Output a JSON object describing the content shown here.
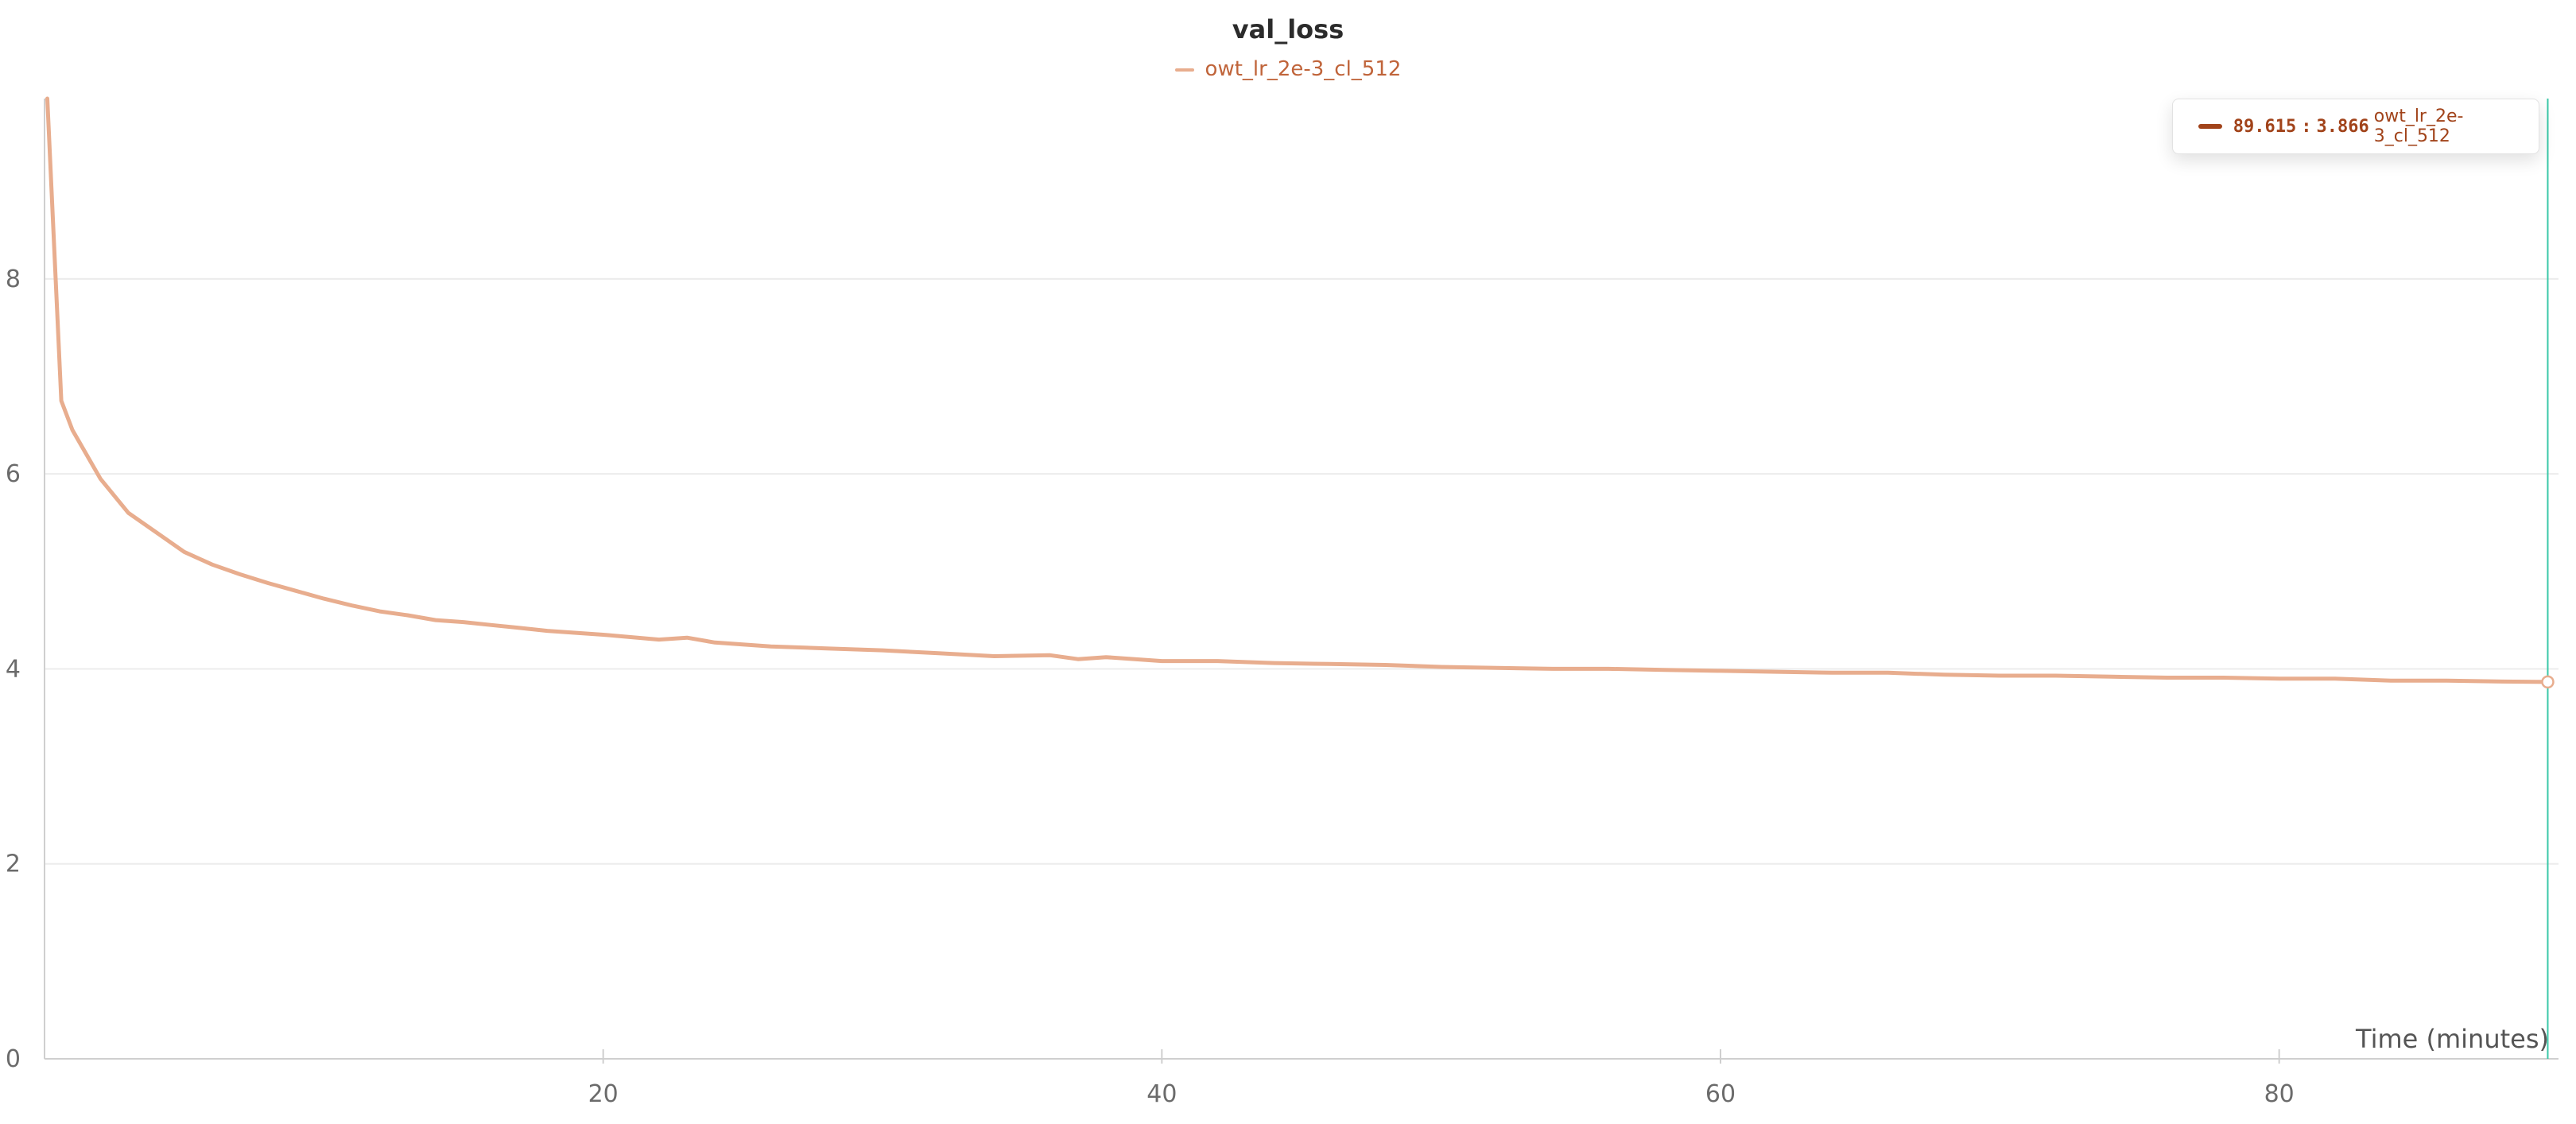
{
  "colors": {
    "series": "#e8ad8e",
    "legend_text": "#c0643a",
    "tooltip_text": "#a1431a",
    "crosshair": "#3ac8a8",
    "grid": "#ececec",
    "axis": "#cfcfcf"
  },
  "tooltip": {
    "x_value": "89.615",
    "y_value": "3.866",
    "series": "owt_lr_2e-3_cl_512"
  },
  "chart_data": {
    "type": "line",
    "title": "val_loss",
    "xlabel": "Time (minutes)",
    "ylabel": "",
    "xlim": [
      0,
      90
    ],
    "ylim": [
      0,
      9.85
    ],
    "x_ticks": [
      20,
      40,
      60,
      80
    ],
    "y_ticks": [
      0,
      2,
      4,
      6,
      8
    ],
    "grid": true,
    "legend_position": "top-center",
    "crosshair_x": 89.615,
    "series": [
      {
        "name": "owt_lr_2e-3_cl_512",
        "x": [
          0.1,
          0.6,
          1,
          1.5,
          2,
          3,
          4,
          5,
          6,
          7,
          8,
          9,
          10,
          11,
          12,
          13,
          14,
          15,
          16,
          17,
          18,
          20,
          22,
          23,
          24,
          26,
          28,
          30,
          32,
          34,
          36,
          37,
          38,
          40,
          42,
          44,
          46,
          48,
          50,
          52,
          54,
          56,
          58,
          60,
          62,
          64,
          66,
          68,
          70,
          72,
          74,
          76,
          78,
          80,
          82,
          84,
          86,
          88,
          89.615
        ],
        "y": [
          9.85,
          6.75,
          6.45,
          6.2,
          5.95,
          5.6,
          5.4,
          5.2,
          5.07,
          4.97,
          4.88,
          4.8,
          4.72,
          4.65,
          4.59,
          4.55,
          4.5,
          4.48,
          4.45,
          4.42,
          4.39,
          4.35,
          4.3,
          4.32,
          4.27,
          4.23,
          4.21,
          4.19,
          4.16,
          4.13,
          4.14,
          4.1,
          4.12,
          4.08,
          4.08,
          4.06,
          4.05,
          4.04,
          4.02,
          4.01,
          4,
          4,
          3.99,
          3.98,
          3.97,
          3.96,
          3.96,
          3.94,
          3.93,
          3.93,
          3.92,
          3.91,
          3.91,
          3.9,
          3.9,
          3.88,
          3.88,
          3.87,
          3.866
        ]
      }
    ]
  }
}
